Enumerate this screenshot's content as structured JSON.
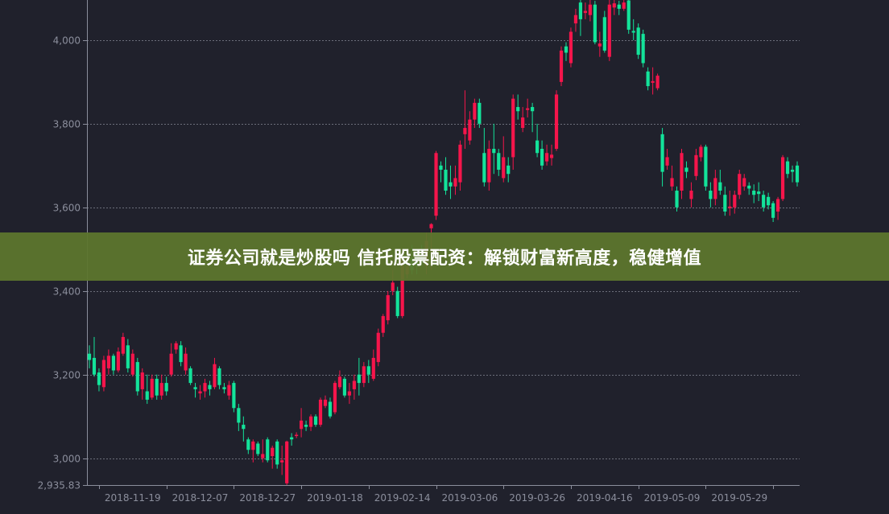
{
  "banner": {
    "text": "证券公司就是炒股吗 信托股票配资：解锁财富新高度，稳健增值"
  },
  "colors": {
    "background": "#20212c",
    "up": "#f5154b",
    "down": "#13e39a",
    "axis": "#8b8e9c",
    "grid": "#6b6e7a",
    "banner": "#5c762e"
  },
  "chart_data": {
    "type": "candlestick",
    "title": "",
    "xlabel": "",
    "ylabel": "",
    "ylim": [
      2935.83,
      4096
    ],
    "grid": true,
    "y_ticks": [
      {
        "value": 2935.83,
        "label": "2,935.83"
      },
      {
        "value": 3000,
        "label": "3,000"
      },
      {
        "value": 3200,
        "label": "3,200"
      },
      {
        "value": 3400,
        "label": "3,400"
      },
      {
        "value": 3600,
        "label": "3,600"
      },
      {
        "value": 3800,
        "label": "3,800"
      },
      {
        "value": 4000,
        "label": "4,000"
      }
    ],
    "x_labels": [
      {
        "index": 9,
        "label": "2018-11-19"
      },
      {
        "index": 23,
        "label": "2018-12-07"
      },
      {
        "index": 37,
        "label": "2018-12-27"
      },
      {
        "index": 51,
        "label": "2019-01-18"
      },
      {
        "index": 65,
        "label": "2019-02-14"
      },
      {
        "index": 79,
        "label": "2019-03-06"
      },
      {
        "index": 93,
        "label": "2019-03-26"
      },
      {
        "index": 107,
        "label": "2019-04-16"
      },
      {
        "index": 121,
        "label": "2019-05-09"
      },
      {
        "index": 135,
        "label": "2019-05-29"
      }
    ],
    "ohlc_format": [
      "open",
      "close",
      "low",
      "high"
    ],
    "ohlc": [
      [
        3250,
        3235,
        3215,
        3270
      ],
      [
        3240,
        3200,
        3195,
        3290
      ],
      [
        3205,
        3175,
        3160,
        3215
      ],
      [
        3170,
        3235,
        3160,
        3245
      ],
      [
        3215,
        3245,
        3200,
        3260
      ],
      [
        3245,
        3210,
        3200,
        3250
      ],
      [
        3210,
        3255,
        3205,
        3265
      ],
      [
        3250,
        3290,
        3245,
        3300
      ],
      [
        3270,
        3215,
        3205,
        3285
      ],
      [
        3200,
        3250,
        3195,
        3260
      ],
      [
        3230,
        3160,
        3150,
        3240
      ],
      [
        3165,
        3205,
        3140,
        3215
      ],
      [
        3160,
        3140,
        3130,
        3200
      ],
      [
        3145,
        3190,
        3140,
        3200
      ],
      [
        3190,
        3150,
        3140,
        3200
      ],
      [
        3150,
        3180,
        3140,
        3200
      ],
      [
        3180,
        3160,
        3150,
        3195
      ],
      [
        3200,
        3250,
        3195,
        3275
      ],
      [
        3260,
        3275,
        3250,
        3280
      ],
      [
        3270,
        3230,
        3220,
        3280
      ],
      [
        3210,
        3250,
        3200,
        3265
      ],
      [
        3215,
        3180,
        3175,
        3220
      ],
      [
        3170,
        3165,
        3145,
        3180
      ],
      [
        3155,
        3160,
        3140,
        3175
      ],
      [
        3160,
        3180,
        3145,
        3190
      ],
      [
        3175,
        3165,
        3150,
        3185
      ],
      [
        3170,
        3225,
        3165,
        3240
      ],
      [
        3215,
        3175,
        3165,
        3220
      ],
      [
        3170,
        3165,
        3155,
        3180
      ],
      [
        3150,
        3175,
        3140,
        3185
      ],
      [
        3180,
        3120,
        3110,
        3185
      ],
      [
        3120,
        3085,
        3065,
        3130
      ],
      [
        3080,
        3070,
        3040,
        3100
      ],
      [
        3045,
        3020,
        3010,
        3050
      ],
      [
        3020,
        3040,
        2990,
        3045
      ],
      [
        3035,
        3010,
        3005,
        3040
      ],
      [
        3000,
        3010,
        2990,
        3045
      ],
      [
        3045,
        2995,
        2990,
        3050
      ],
      [
        3005,
        3025,
        2975,
        3030
      ],
      [
        3040,
        2985,
        2975,
        3045
      ],
      [
        2990,
        2995,
        2960,
        3030
      ],
      [
        2940,
        3040,
        2936,
        3042
      ],
      [
        3050,
        3045,
        3030,
        3060
      ],
      [
        3054,
        3056,
        3048,
        3062
      ],
      [
        3070,
        3090,
        3050,
        3120
      ],
      [
        3080,
        3075,
        3065,
        3090
      ],
      [
        3075,
        3100,
        3065,
        3105
      ],
      [
        3100,
        3080,
        3075,
        3105
      ],
      [
        3080,
        3140,
        3075,
        3145
      ],
      [
        3125,
        3140,
        3120,
        3150
      ],
      [
        3135,
        3100,
        3095,
        3145
      ],
      [
        3110,
        3180,
        3105,
        3185
      ],
      [
        3170,
        3195,
        3165,
        3210
      ],
      [
        3190,
        3150,
        3145,
        3195
      ],
      [
        3150,
        3160,
        3130,
        3180
      ],
      [
        3165,
        3185,
        3140,
        3200
      ],
      [
        3200,
        3180,
        3150,
        3240
      ],
      [
        3180,
        3220,
        3170,
        3230
      ],
      [
        3220,
        3200,
        3180,
        3235
      ],
      [
        3190,
        3240,
        3185,
        3260
      ],
      [
        3230,
        3300,
        3220,
        3310
      ],
      [
        3300,
        3340,
        3290,
        3345
      ],
      [
        3330,
        3390,
        3320,
        3400
      ],
      [
        3400,
        3420,
        3390,
        3450
      ],
      [
        3400,
        3340,
        3335,
        3410
      ],
      [
        3340,
        3480,
        3335,
        3500
      ],
      [
        3440,
        3460,
        3430,
        3480
      ],
      [
        3480,
        3450,
        3440,
        3510
      ],
      [
        3470,
        3460,
        3440,
        3490
      ],
      [
        3480,
        3470,
        3460,
        3510
      ],
      [
        3460,
        3520,
        3440,
        3540
      ],
      [
        3550,
        3560,
        3450,
        3562
      ],
      [
        3580,
        3730,
        3570,
        3735
      ],
      [
        3700,
        3690,
        3660,
        3710
      ],
      [
        3690,
        3640,
        3630,
        3720
      ],
      [
        3660,
        3650,
        3620,
        3700
      ],
      [
        3650,
        3670,
        3630,
        3700
      ],
      [
        3660,
        3750,
        3640,
        3760
      ],
      [
        3775,
        3790,
        3740,
        3880
      ],
      [
        3760,
        3810,
        3750,
        3830
      ],
      [
        3810,
        3850,
        3790,
        3860
      ],
      [
        3850,
        3800,
        3790,
        3860
      ],
      [
        3730,
        3660,
        3650,
        3790
      ],
      [
        3660,
        3740,
        3640,
        3760
      ],
      [
        3740,
        3730,
        3680,
        3800
      ],
      [
        3730,
        3690,
        3675,
        3740
      ],
      [
        3670,
        3720,
        3660,
        3770
      ],
      [
        3700,
        3680,
        3660,
        3720
      ],
      [
        3720,
        3860,
        3690,
        3870
      ],
      [
        3840,
        3830,
        3810,
        3870
      ],
      [
        3790,
        3815,
        3780,
        3840
      ],
      [
        3833,
        3837,
        3815,
        3860
      ],
      [
        3840,
        3830,
        3780,
        3850
      ],
      [
        3760,
        3730,
        3720,
        3800
      ],
      [
        3740,
        3700,
        3690,
        3760
      ],
      [
        3710,
        3730,
        3700,
        3750
      ],
      [
        3718,
        3726,
        3700,
        3750
      ],
      [
        3740,
        3870,
        3735,
        3880
      ],
      [
        3900,
        3975,
        3890,
        3985
      ],
      [
        3985,
        3970,
        3950,
        3995
      ],
      [
        3945,
        4020,
        3935,
        4030
      ],
      [
        4040,
        4060,
        4020,
        4075
      ],
      [
        4090,
        4050,
        4010,
        4096
      ],
      [
        4065,
        4070,
        4050,
        4090
      ],
      [
        4060,
        4085,
        4045,
        4096
      ],
      [
        4085,
        3995,
        3990,
        4094
      ],
      [
        3985,
        3992,
        3960,
        4020
      ],
      [
        4055,
        3975,
        3970,
        4070
      ],
      [
        3960,
        4085,
        3950,
        4096
      ],
      [
        4078,
        4088,
        4060,
        4096
      ],
      [
        4085,
        4075,
        4060,
        4094
      ],
      [
        4075,
        4090,
        4070,
        4096
      ],
      [
        4095,
        4025,
        4015,
        4096
      ],
      [
        4022,
        4018,
        4000,
        4050
      ],
      [
        4030,
        3965,
        3955,
        4040
      ],
      [
        4015,
        3945,
        3935,
        4025
      ],
      [
        3925,
        3890,
        3880,
        3935
      ],
      [
        3898,
        3902,
        3870,
        3935
      ],
      [
        3885,
        3915,
        3880,
        3920
      ],
      [
        3775,
        3685,
        3650,
        3790
      ],
      [
        3700,
        3720,
        3690,
        3740
      ],
      [
        3650,
        3670,
        3640,
        3700
      ],
      [
        3640,
        3600,
        3590,
        3650
      ],
      [
        3640,
        3730,
        3620,
        3740
      ],
      [
        3695,
        3685,
        3670,
        3710
      ],
      [
        3620,
        3640,
        3600,
        3660
      ],
      [
        3675,
        3725,
        3665,
        3740
      ],
      [
        3720,
        3745,
        3710,
        3750
      ],
      [
        3745,
        3650,
        3640,
        3750
      ],
      [
        3640,
        3620,
        3600,
        3660
      ],
      [
        3620,
        3670,
        3605,
        3690
      ],
      [
        3660,
        3640,
        3630,
        3690
      ],
      [
        3630,
        3590,
        3580,
        3650
      ],
      [
        3598,
        3602,
        3580,
        3640
      ],
      [
        3600,
        3630,
        3585,
        3640
      ],
      [
        3630,
        3680,
        3620,
        3690
      ],
      [
        3650,
        3670,
        3640,
        3680
      ],
      [
        3652,
        3645,
        3630,
        3660
      ],
      [
        3640,
        3630,
        3610,
        3655
      ],
      [
        3638,
        3632,
        3615,
        3660
      ],
      [
        3630,
        3600,
        3590,
        3640
      ],
      [
        3625,
        3605,
        3595,
        3635
      ],
      [
        3610,
        3575,
        3565,
        3615
      ],
      [
        3590,
        3620,
        3570,
        3625
      ],
      [
        3620,
        3720,
        3615,
        3725
      ],
      [
        3710,
        3680,
        3670,
        3720
      ],
      [
        3690,
        3685,
        3660,
        3700
      ],
      [
        3700,
        3660,
        3650,
        3710
      ]
    ]
  }
}
